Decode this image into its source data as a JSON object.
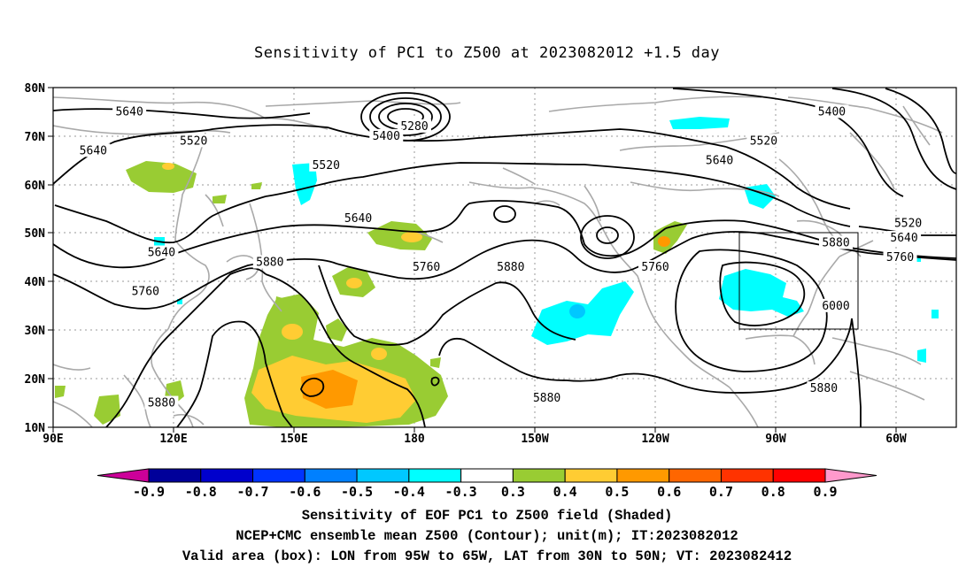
{
  "title": "Sensitivity of PC1 to Z500 at 2023082012 +1.5 day",
  "captions": [
    "Sensitivity of EOF PC1 to Z500 field (Shaded)",
    "NCEP+CMC ensemble mean Z500 (Contour); unit(m); IT:2023082012",
    "Valid area (box): LON from 95W to 65W, LAT from 30N to 50N; VT: 2023082412"
  ],
  "lat_labels": [
    "80N",
    "70N",
    "60N",
    "50N",
    "40N",
    "30N",
    "20N",
    "10N"
  ],
  "lon_labels": [
    "90E",
    "120E",
    "150E",
    "180",
    "150W",
    "120W",
    "90W",
    "60W"
  ],
  "map": {
    "lon_range": [
      90,
      315
    ],
    "lat_range": [
      10,
      80
    ],
    "contour_labels": [
      {
        "text": "5640",
        "lon": 109,
        "lat": 75
      },
      {
        "text": "5640",
        "lon": 100,
        "lat": 67
      },
      {
        "text": "5520",
        "lon": 125,
        "lat": 69
      },
      {
        "text": "5280",
        "lon": 180,
        "lat": 72
      },
      {
        "text": "5400",
        "lon": 173,
        "lat": 70
      },
      {
        "text": "5520",
        "lon": 158,
        "lat": 64
      },
      {
        "text": "5400",
        "lon": 284,
        "lat": 75
      },
      {
        "text": "5520",
        "lon": 267,
        "lat": 69
      },
      {
        "text": "5640",
        "lon": 256,
        "lat": 65
      },
      {
        "text": "5640",
        "lon": 166,
        "lat": 53
      },
      {
        "text": "5640",
        "lon": 117,
        "lat": 46
      },
      {
        "text": "5880",
        "lon": 144,
        "lat": 44
      },
      {
        "text": "5760",
        "lon": 183,
        "lat": 43
      },
      {
        "text": "5880",
        "lon": 204,
        "lat": 43
      },
      {
        "text": "5760",
        "lon": 113,
        "lat": 38
      },
      {
        "text": "5760",
        "lon": 240,
        "lat": 43
      },
      {
        "text": "5880",
        "lon": 285,
        "lat": 48
      },
      {
        "text": "5640",
        "lon": 302,
        "lat": 49
      },
      {
        "text": "5760",
        "lon": 301,
        "lat": 45
      },
      {
        "text": "5520",
        "lon": 303,
        "lat": 52
      },
      {
        "text": "6000",
        "lon": 285,
        "lat": 35
      },
      {
        "text": "5880",
        "lon": 117,
        "lat": 15
      },
      {
        "text": "5880",
        "lon": 213,
        "lat": 16
      },
      {
        "text": "5880",
        "lon": 282,
        "lat": 18
      }
    ],
    "valid_box": {
      "lon_min": 265,
      "lon_max": 295,
      "lat_min": 30,
      "lat_max": 50
    }
  },
  "colorbar": {
    "labels": [
      "-0.9",
      "-0.8",
      "-0.7",
      "-0.6",
      "-0.5",
      "-0.4",
      "-0.3",
      "0.3",
      "0.4",
      "0.5",
      "0.6",
      "0.7",
      "0.8",
      "0.9"
    ],
    "colors": [
      "#cc0099",
      "#00009a",
      "#0000cc",
      "#0033ff",
      "#0080ff",
      "#00c8ff",
      "#00ffff",
      "#ffffff",
      "#99cc33",
      "#ffcc33",
      "#ff9900",
      "#ff6600",
      "#ff3300",
      "#ff0000",
      "#ff99cc"
    ]
  }
}
